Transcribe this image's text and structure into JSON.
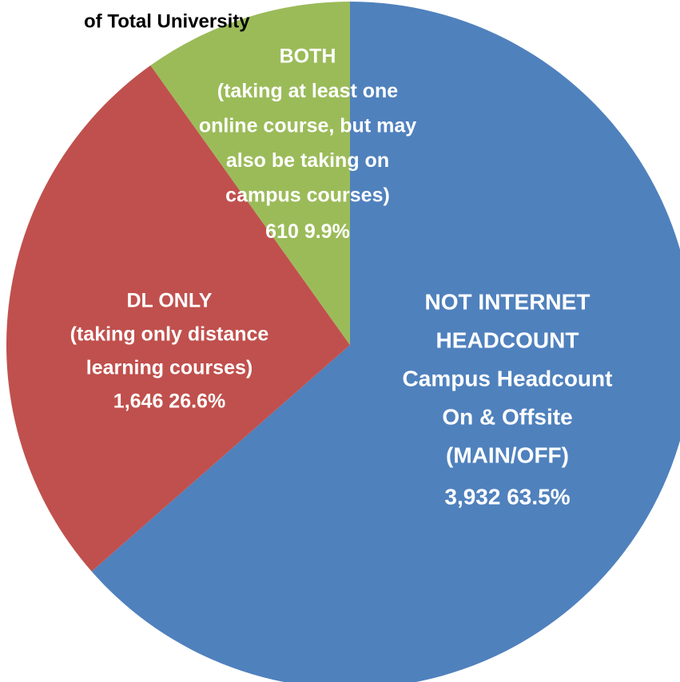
{
  "chart_data": {
    "type": "pie",
    "title": "of Total University",
    "categories": [
      [
        "NOT INTERNET",
        "HEADCOUNT",
        "Campus Headcount",
        "On & Offsite",
        "(MAIN/OFF)"
      ],
      [
        "DL ONLY",
        "(taking only distance",
        "learning courses)"
      ],
      [
        "BOTH",
        "(taking at least one",
        "online course, but may",
        "also be taking on",
        "campus courses)"
      ]
    ],
    "values": [
      3932,
      1646,
      610
    ],
    "value_labels": [
      "3,932  63.5%",
      "1,646  26.6%",
      "610  9.9%"
    ],
    "colors": [
      "#4f81bd",
      "#c0504d",
      "#9bbb59"
    ]
  }
}
